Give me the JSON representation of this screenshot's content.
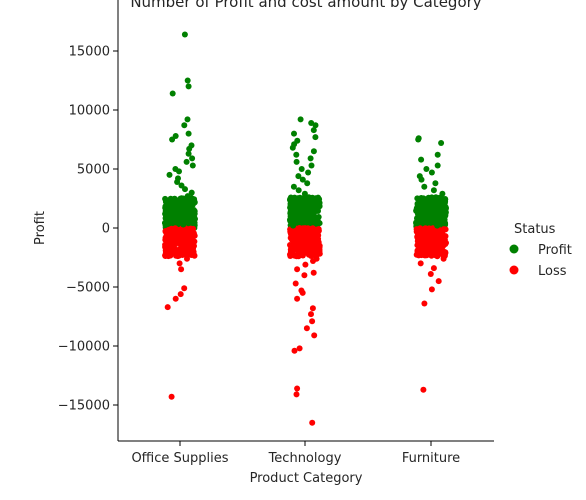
{
  "chart_data": {
    "type": "scatter",
    "title": "Number of Profit and cost amount by Category",
    "xlabel": "Product Category",
    "ylabel": "Profit",
    "categories": [
      "Office Supplies",
      "Technology",
      "Furniture"
    ],
    "ylim": [
      -18000,
      18000
    ],
    "yticks": [
      -15000,
      -10000,
      -5000,
      0,
      5000,
      10000,
      15000
    ],
    "ytick_labels": [
      "−15000",
      "−10000",
      "−5000",
      "0",
      "5000",
      "10000",
      "15000"
    ],
    "grid": false,
    "legend": {
      "title": "Status",
      "placement": "right",
      "entries": [
        "Profit",
        "Loss"
      ]
    },
    "colors": {
      "Profit": "#008000",
      "Loss": "#ff0000"
    },
    "series": [
      {
        "name": "Profit",
        "points": [
          {
            "x": "Office Supplies",
            "y": 16400
          },
          {
            "x": "Office Supplies",
            "y": 12500
          },
          {
            "x": "Office Supplies",
            "y": 12000
          },
          {
            "x": "Office Supplies",
            "y": 11400
          },
          {
            "x": "Office Supplies",
            "y": 9200
          },
          {
            "x": "Office Supplies",
            "y": 8700
          },
          {
            "x": "Office Supplies",
            "y": 8000
          },
          {
            "x": "Office Supplies",
            "y": 7800
          },
          {
            "x": "Office Supplies",
            "y": 7500
          },
          {
            "x": "Office Supplies",
            "y": 7000
          },
          {
            "x": "Office Supplies",
            "y": 6700
          },
          {
            "x": "Office Supplies",
            "y": 6300
          },
          {
            "x": "Office Supplies",
            "y": 5900
          },
          {
            "x": "Office Supplies",
            "y": 5600
          },
          {
            "x": "Office Supplies",
            "y": 5300
          },
          {
            "x": "Office Supplies",
            "y": 5000
          },
          {
            "x": "Office Supplies",
            "y": 4800
          },
          {
            "x": "Office Supplies",
            "y": 4500
          },
          {
            "x": "Office Supplies",
            "y": 4200
          },
          {
            "x": "Office Supplies",
            "y": 3900
          },
          {
            "x": "Office Supplies",
            "y": 3600
          },
          {
            "x": "Office Supplies",
            "y": 3300
          },
          {
            "x": "Office Supplies",
            "y": 3000
          },
          {
            "x": "Office Supplies",
            "y": 2700
          },
          {
            "x": "Office Supplies",
            "y": 2400
          },
          {
            "x": "Office Supplies",
            "y": 2100
          },
          {
            "x": "Office Supplies",
            "y": 1800
          },
          {
            "x": "Office Supplies",
            "y": 1500
          },
          {
            "x": "Office Supplies",
            "y": 1200
          },
          {
            "x": "Office Supplies",
            "y": 900
          },
          {
            "x": "Office Supplies",
            "y": 600
          },
          {
            "x": "Office Supplies",
            "y": 300
          },
          {
            "x": "Technology",
            "y": 9200
          },
          {
            "x": "Technology",
            "y": 8900
          },
          {
            "x": "Technology",
            "y": 8700
          },
          {
            "x": "Technology",
            "y": 8300
          },
          {
            "x": "Technology",
            "y": 8000
          },
          {
            "x": "Technology",
            "y": 7700
          },
          {
            "x": "Technology",
            "y": 7400
          },
          {
            "x": "Technology",
            "y": 7100
          },
          {
            "x": "Technology",
            "y": 6800
          },
          {
            "x": "Technology",
            "y": 6500
          },
          {
            "x": "Technology",
            "y": 6200
          },
          {
            "x": "Technology",
            "y": 5900
          },
          {
            "x": "Technology",
            "y": 5600
          },
          {
            "x": "Technology",
            "y": 5300
          },
          {
            "x": "Technology",
            "y": 5000
          },
          {
            "x": "Technology",
            "y": 4700
          },
          {
            "x": "Technology",
            "y": 4400
          },
          {
            "x": "Technology",
            "y": 4100
          },
          {
            "x": "Technology",
            "y": 3800
          },
          {
            "x": "Technology",
            "y": 3500
          },
          {
            "x": "Technology",
            "y": 3200
          },
          {
            "x": "Technology",
            "y": 2900
          },
          {
            "x": "Technology",
            "y": 2600
          },
          {
            "x": "Technology",
            "y": 2300
          },
          {
            "x": "Technology",
            "y": 2000
          },
          {
            "x": "Technology",
            "y": 1700
          },
          {
            "x": "Technology",
            "y": 1400
          },
          {
            "x": "Technology",
            "y": 1100
          },
          {
            "x": "Technology",
            "y": 800
          },
          {
            "x": "Technology",
            "y": 500
          },
          {
            "x": "Technology",
            "y": 200
          },
          {
            "x": "Furniture",
            "y": 7600
          },
          {
            "x": "Furniture",
            "y": 7500
          },
          {
            "x": "Furniture",
            "y": 7200
          },
          {
            "x": "Furniture",
            "y": 6200
          },
          {
            "x": "Furniture",
            "y": 5800
          },
          {
            "x": "Furniture",
            "y": 5300
          },
          {
            "x": "Furniture",
            "y": 5000
          },
          {
            "x": "Furniture",
            "y": 4700
          },
          {
            "x": "Furniture",
            "y": 4400
          },
          {
            "x": "Furniture",
            "y": 4100
          },
          {
            "x": "Furniture",
            "y": 3800
          },
          {
            "x": "Furniture",
            "y": 3500
          },
          {
            "x": "Furniture",
            "y": 3200
          },
          {
            "x": "Furniture",
            "y": 2900
          },
          {
            "x": "Furniture",
            "y": 2600
          },
          {
            "x": "Furniture",
            "y": 2300
          },
          {
            "x": "Furniture",
            "y": 2000
          },
          {
            "x": "Furniture",
            "y": 1700
          },
          {
            "x": "Furniture",
            "y": 1400
          },
          {
            "x": "Furniture",
            "y": 1100
          },
          {
            "x": "Furniture",
            "y": 800
          },
          {
            "x": "Furniture",
            "y": 500
          },
          {
            "x": "Furniture",
            "y": 200
          }
        ]
      },
      {
        "name": "Loss",
        "points": [
          {
            "x": "Office Supplies",
            "y": -200
          },
          {
            "x": "Office Supplies",
            "y": -500
          },
          {
            "x": "Office Supplies",
            "y": -800
          },
          {
            "x": "Office Supplies",
            "y": -1100
          },
          {
            "x": "Office Supplies",
            "y": -1400
          },
          {
            "x": "Office Supplies",
            "y": -1700
          },
          {
            "x": "Office Supplies",
            "y": -2000
          },
          {
            "x": "Office Supplies",
            "y": -2300
          },
          {
            "x": "Office Supplies",
            "y": -2600
          },
          {
            "x": "Office Supplies",
            "y": -3000
          },
          {
            "x": "Office Supplies",
            "y": -3500
          },
          {
            "x": "Office Supplies",
            "y": -5100
          },
          {
            "x": "Office Supplies",
            "y": -5600
          },
          {
            "x": "Office Supplies",
            "y": -6000
          },
          {
            "x": "Office Supplies",
            "y": -6700
          },
          {
            "x": "Office Supplies",
            "y": -14300
          },
          {
            "x": "Technology",
            "y": -200
          },
          {
            "x": "Technology",
            "y": -500
          },
          {
            "x": "Technology",
            "y": -800
          },
          {
            "x": "Technology",
            "y": -1100
          },
          {
            "x": "Technology",
            "y": -1400
          },
          {
            "x": "Technology",
            "y": -1700
          },
          {
            "x": "Technology",
            "y": -2000
          },
          {
            "x": "Technology",
            "y": -2300
          },
          {
            "x": "Technology",
            "y": -2600
          },
          {
            "x": "Technology",
            "y": -2800
          },
          {
            "x": "Technology",
            "y": -3100
          },
          {
            "x": "Technology",
            "y": -3500
          },
          {
            "x": "Technology",
            "y": -3800
          },
          {
            "x": "Technology",
            "y": -4000
          },
          {
            "x": "Technology",
            "y": -4700
          },
          {
            "x": "Technology",
            "y": -5300
          },
          {
            "x": "Technology",
            "y": -5500
          },
          {
            "x": "Technology",
            "y": -6000
          },
          {
            "x": "Technology",
            "y": -6800
          },
          {
            "x": "Technology",
            "y": -7300
          },
          {
            "x": "Technology",
            "y": -7900
          },
          {
            "x": "Technology",
            "y": -8500
          },
          {
            "x": "Technology",
            "y": -9100
          },
          {
            "x": "Technology",
            "y": -10200
          },
          {
            "x": "Technology",
            "y": -10400
          },
          {
            "x": "Technology",
            "y": -13600
          },
          {
            "x": "Technology",
            "y": -14100
          },
          {
            "x": "Technology",
            "y": -16500
          },
          {
            "x": "Furniture",
            "y": -200
          },
          {
            "x": "Furniture",
            "y": -500
          },
          {
            "x": "Furniture",
            "y": -800
          },
          {
            "x": "Furniture",
            "y": -1100
          },
          {
            "x": "Furniture",
            "y": -1400
          },
          {
            "x": "Furniture",
            "y": -1700
          },
          {
            "x": "Furniture",
            "y": -2000
          },
          {
            "x": "Furniture",
            "y": -2300
          },
          {
            "x": "Furniture",
            "y": -2600
          },
          {
            "x": "Furniture",
            "y": -3000
          },
          {
            "x": "Furniture",
            "y": -3400
          },
          {
            "x": "Furniture",
            "y": -3900
          },
          {
            "x": "Furniture",
            "y": -4500
          },
          {
            "x": "Furniture",
            "y": -5200
          },
          {
            "x": "Furniture",
            "y": -6400
          },
          {
            "x": "Furniture",
            "y": -13700
          }
        ]
      }
    ]
  }
}
